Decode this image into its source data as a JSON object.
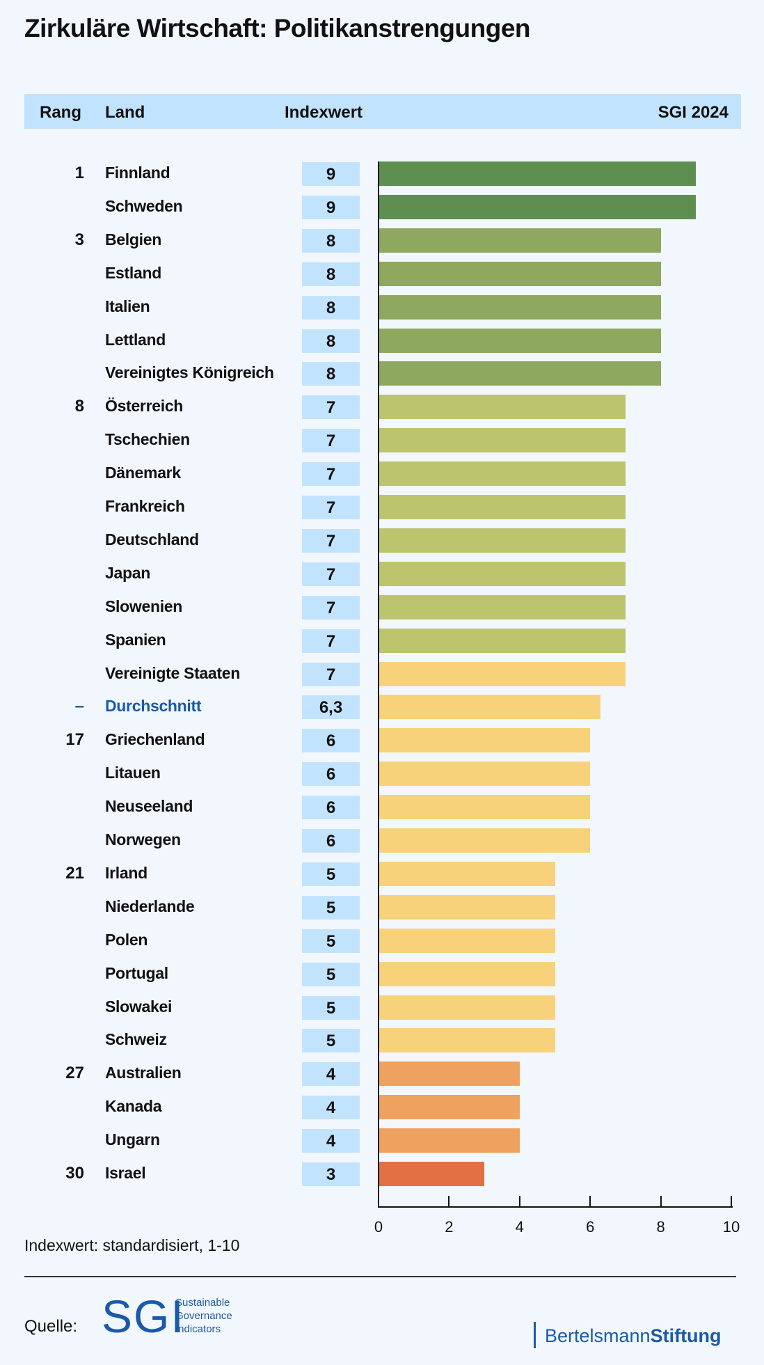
{
  "title": "Zirkuläre Wirtschaft: Politikanstrengungen",
  "header": {
    "rank": "Rang",
    "land": "Land",
    "index": "Indexwert",
    "edition": "SGI 2024"
  },
  "palette": {
    "9": "#5e8f50",
    "8": "#8ea85f",
    "7": "#bcc46e",
    "7y": "#f8d27a",
    "6": "#f8d27a",
    "5": "#f8d27a",
    "4": "#efa25f",
    "3": "#e36f44",
    "avg": "#f8d27a"
  },
  "chart_data": {
    "type": "bar",
    "orientation": "horizontal",
    "xlim": [
      0,
      10
    ],
    "xticks": [
      "0",
      "2",
      "4",
      "6",
      "8",
      "10"
    ],
    "rows": [
      {
        "rank": "1",
        "country": "Finnland",
        "label": "9",
        "value": 9,
        "color": "9"
      },
      {
        "rank": "",
        "country": "Schweden",
        "label": "9",
        "value": 9,
        "color": "9"
      },
      {
        "rank": "3",
        "country": "Belgien",
        "label": "8",
        "value": 8,
        "color": "8"
      },
      {
        "rank": "",
        "country": "Estland",
        "label": "8",
        "value": 8,
        "color": "8"
      },
      {
        "rank": "",
        "country": "Italien",
        "label": "8",
        "value": 8,
        "color": "8"
      },
      {
        "rank": "",
        "country": "Lettland",
        "label": "8",
        "value": 8,
        "color": "8"
      },
      {
        "rank": "",
        "country": "Vereinigtes Königreich",
        "label": "8",
        "value": 8,
        "color": "8"
      },
      {
        "rank": "8",
        "country": "Österreich",
        "label": "7",
        "value": 7,
        "color": "7"
      },
      {
        "rank": "",
        "country": "Tschechien",
        "label": "7",
        "value": 7,
        "color": "7"
      },
      {
        "rank": "",
        "country": "Dänemark",
        "label": "7",
        "value": 7,
        "color": "7"
      },
      {
        "rank": "",
        "country": "Frankreich",
        "label": "7",
        "value": 7,
        "color": "7"
      },
      {
        "rank": "",
        "country": "Deutschland",
        "label": "7",
        "value": 7,
        "color": "7"
      },
      {
        "rank": "",
        "country": "Japan",
        "label": "7",
        "value": 7,
        "color": "7"
      },
      {
        "rank": "",
        "country": "Slowenien",
        "label": "7",
        "value": 7,
        "color": "7"
      },
      {
        "rank": "",
        "country": "Spanien",
        "label": "7",
        "value": 7,
        "color": "7"
      },
      {
        "rank": "",
        "country": "Vereinigte Staaten",
        "label": "7",
        "value": 7,
        "color": "7y"
      },
      {
        "rank": "–",
        "country": "Durchschnitt",
        "label": "6,3",
        "value": 6.3,
        "color": "avg",
        "average": true
      },
      {
        "rank": "17",
        "country": "Griechenland",
        "label": "6",
        "value": 6,
        "color": "6"
      },
      {
        "rank": "",
        "country": "Litauen",
        "label": "6",
        "value": 6,
        "color": "6"
      },
      {
        "rank": "",
        "country": "Neuseeland",
        "label": "6",
        "value": 6,
        "color": "6"
      },
      {
        "rank": "",
        "country": "Norwegen",
        "label": "6",
        "value": 6,
        "color": "6"
      },
      {
        "rank": "21",
        "country": "Irland",
        "label": "5",
        "value": 5,
        "color": "5"
      },
      {
        "rank": "",
        "country": "Niederlande",
        "label": "5",
        "value": 5,
        "color": "5"
      },
      {
        "rank": "",
        "country": "Polen",
        "label": "5",
        "value": 5,
        "color": "5"
      },
      {
        "rank": "",
        "country": "Portugal",
        "label": "5",
        "value": 5,
        "color": "5"
      },
      {
        "rank": "",
        "country": "Slowakei",
        "label": "5",
        "value": 5,
        "color": "5"
      },
      {
        "rank": "",
        "country": "Schweiz",
        "label": "5",
        "value": 5,
        "color": "5"
      },
      {
        "rank": "27",
        "country": "Australien",
        "label": "4",
        "value": 4,
        "color": "4"
      },
      {
        "rank": "",
        "country": "Kanada",
        "label": "4",
        "value": 4,
        "color": "4"
      },
      {
        "rank": "",
        "country": "Ungarn",
        "label": "4",
        "value": 4,
        "color": "4"
      },
      {
        "rank": "30",
        "country": "Israel",
        "label": "3",
        "value": 3,
        "color": "3"
      }
    ]
  },
  "note": "Indexwert: standardisiert, 1-10",
  "footer": {
    "source_label": "Quelle:",
    "sgi_logo": "SGI",
    "sgi_lines": [
      "Sustainable",
      "Governance",
      "Indicators"
    ],
    "bs_part1": "Bertelsmann",
    "bs_part2": "Stiftung"
  }
}
